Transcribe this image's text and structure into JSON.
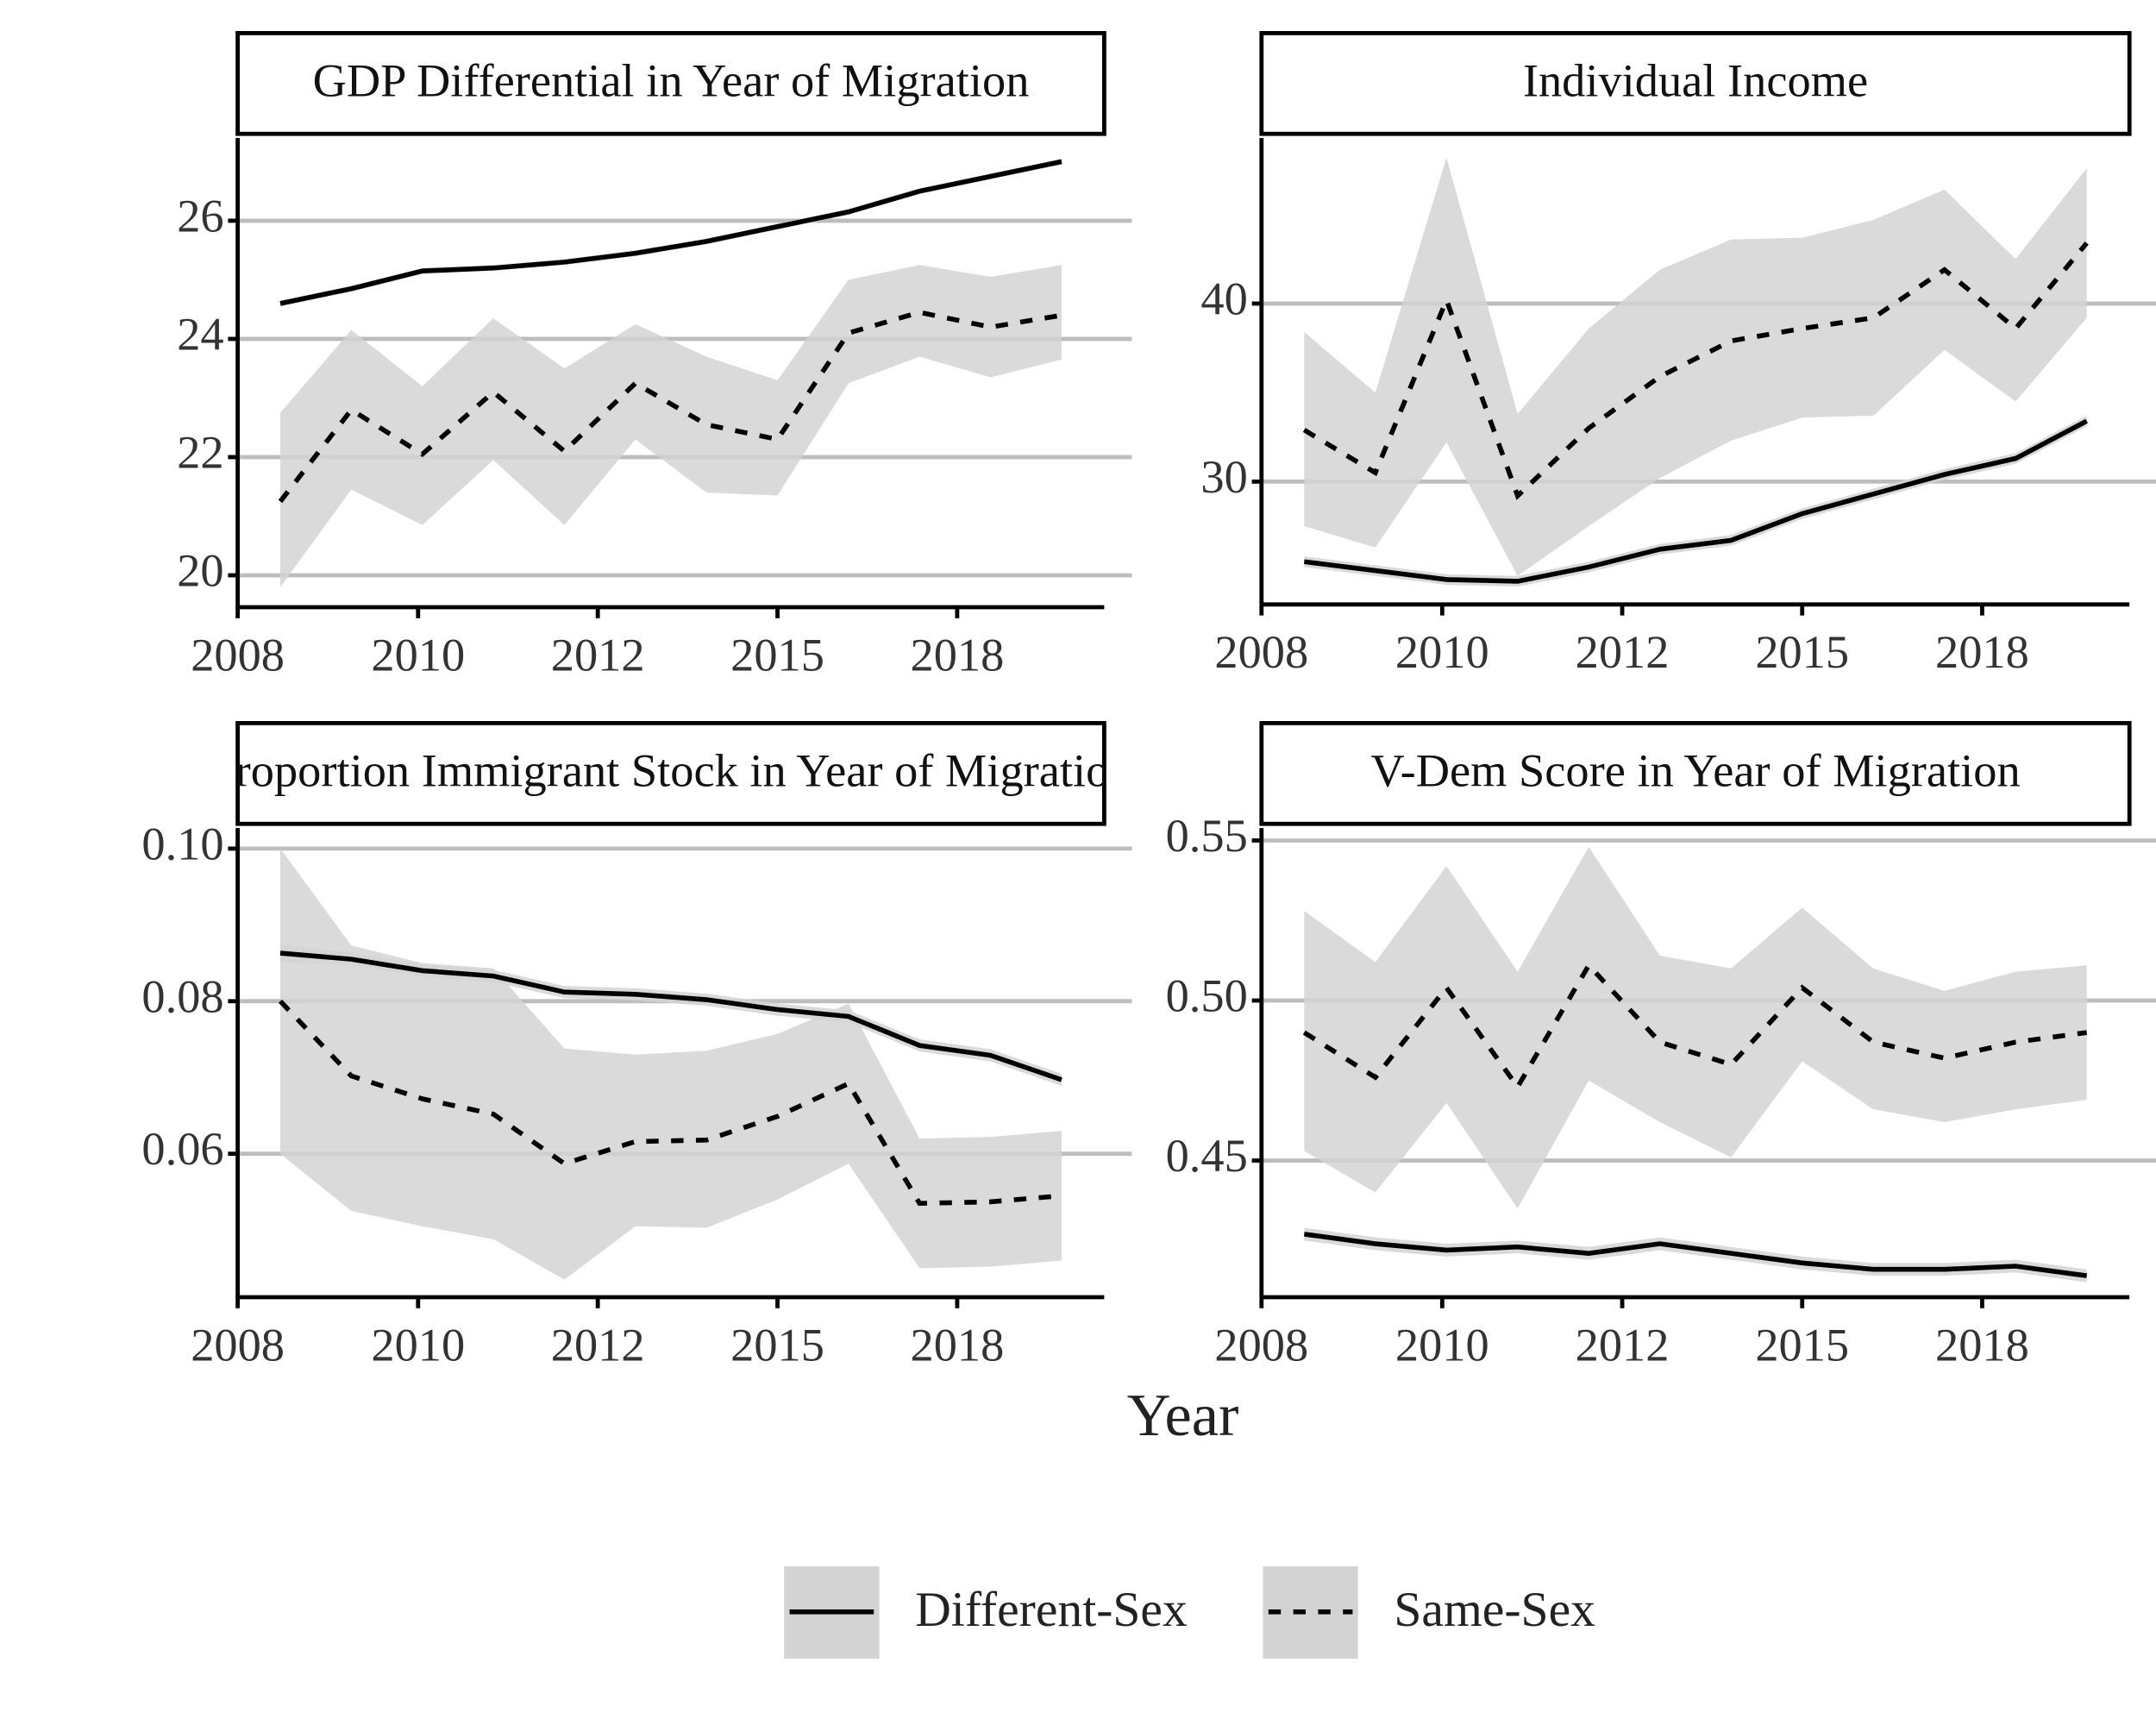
{
  "x_label": "Year",
  "chart_data": [
    {
      "type": "line",
      "title": "GDP Differential in Year of Migration",
      "x": [
        2008,
        2009,
        2010,
        2011,
        2012,
        2013,
        2014,
        2015,
        2016,
        2017,
        2018,
        2019
      ],
      "xlim": [
        2007.4,
        2019.6
      ],
      "xticks": [
        {
          "value": 2007.4,
          "label": "2008"
        },
        {
          "value": 2009.94,
          "label": "2010"
        },
        {
          "value": 2012.47,
          "label": "2012"
        },
        {
          "value": 2015.0,
          "label": "2015"
        },
        {
          "value": 2017.53,
          "label": "2018"
        }
      ],
      "ylim": [
        19.46,
        27.4
      ],
      "yticks": [
        20,
        22,
        24,
        26
      ],
      "grid": true,
      "band_color": "#d3d3d3",
      "series": [
        {
          "name": "Different-Sex",
          "color": "#000000",
          "style": "solid",
          "values": [
            24.6,
            24.85,
            25.15,
            25.2,
            25.3,
            25.45,
            25.65,
            25.9,
            26.15,
            26.5,
            26.75,
            27.0
          ],
          "lower": [
            24.55,
            24.8,
            25.1,
            25.15,
            25.25,
            25.4,
            25.6,
            25.85,
            26.1,
            26.45,
            26.7,
            26.95
          ],
          "upper": [
            24.65,
            24.9,
            25.2,
            25.25,
            25.35,
            25.5,
            25.7,
            25.95,
            26.2,
            26.55,
            26.8,
            27.05
          ]
        },
        {
          "name": "Same-Sex",
          "color": "#000000",
          "style": "dashed",
          "values": [
            21.25,
            22.8,
            22.05,
            23.1,
            22.1,
            23.25,
            22.55,
            22.3,
            24.1,
            24.45,
            24.2,
            24.4
          ],
          "lower": [
            19.8,
            21.45,
            20.85,
            21.95,
            20.85,
            22.3,
            21.4,
            21.35,
            23.25,
            23.7,
            23.35,
            23.65
          ],
          "upper": [
            22.75,
            24.15,
            23.2,
            24.35,
            23.5,
            24.25,
            23.7,
            23.3,
            25.0,
            25.25,
            25.05,
            25.25
          ]
        }
      ]
    },
    {
      "type": "line",
      "title": "Individual Income",
      "x": [
        2008,
        2009,
        2010,
        2011,
        2012,
        2013,
        2014,
        2015,
        2016,
        2017,
        2018,
        2019
      ],
      "xlim": [
        2007.4,
        2019.6
      ],
      "xticks": [
        {
          "value": 2007.4,
          "label": "2008"
        },
        {
          "value": 2009.94,
          "label": "2010"
        },
        {
          "value": 2012.47,
          "label": "2012"
        },
        {
          "value": 2015.0,
          "label": "2015"
        },
        {
          "value": 2017.53,
          "label": "2018"
        }
      ],
      "ylim": [
        23.1,
        49.3
      ],
      "yticks": [
        30,
        40
      ],
      "grid": true,
      "band_color": "#d3d3d3",
      "series": [
        {
          "name": "Different-Sex",
          "color": "#000000",
          "style": "solid",
          "values": [
            25.5,
            25.0,
            24.5,
            24.4,
            25.2,
            26.2,
            26.7,
            28.2,
            29.3,
            30.4,
            31.3,
            33.4
          ],
          "lower": [
            25.2,
            24.7,
            24.2,
            24.1,
            24.9,
            25.9,
            26.4,
            27.9,
            29.0,
            30.1,
            31.0,
            33.1
          ],
          "upper": [
            25.8,
            25.3,
            24.8,
            24.7,
            25.5,
            26.5,
            27.0,
            28.5,
            29.6,
            30.7,
            31.6,
            33.7
          ]
        },
        {
          "name": "Same-Sex",
          "color": "#000000",
          "style": "dashed",
          "values": [
            32.9,
            30.5,
            40.2,
            29.2,
            33.0,
            35.9,
            37.9,
            38.6,
            39.2,
            41.9,
            38.6,
            43.4
          ],
          "lower": [
            27.5,
            26.3,
            32.2,
            24.7,
            27.5,
            30.2,
            32.3,
            33.6,
            33.7,
            37.4,
            34.5,
            39.2
          ],
          "upper": [
            38.4,
            35.0,
            48.2,
            33.8,
            38.6,
            41.9,
            43.6,
            43.7,
            44.7,
            46.4,
            42.5,
            47.6
          ]
        }
      ]
    },
    {
      "type": "line",
      "title": "Proportion Immigrant Stock in Year of Migration",
      "x": [
        2008,
        2009,
        2010,
        2011,
        2012,
        2013,
        2014,
        2015,
        2016,
        2017,
        2018,
        2019
      ],
      "xlim": [
        2007.4,
        2019.6
      ],
      "xticks": [
        {
          "value": 2007.4,
          "label": "2008"
        },
        {
          "value": 2009.94,
          "label": "2010"
        },
        {
          "value": 2012.47,
          "label": "2012"
        },
        {
          "value": 2015.0,
          "label": "2015"
        },
        {
          "value": 2017.53,
          "label": "2018"
        }
      ],
      "ylim": [
        0.0412,
        0.1027
      ],
      "yticks": [
        {
          "value": 0.06,
          "label": "0.06"
        },
        {
          "value": 0.08,
          "label": "0.08"
        },
        {
          "value": 0.1,
          "label": "0.10"
        }
      ],
      "grid": true,
      "band_color": "#d3d3d3",
      "series": [
        {
          "name": "Different-Sex",
          "color": "#000000",
          "style": "solid",
          "values": [
            0.0863,
            0.0855,
            0.084,
            0.0833,
            0.0812,
            0.0809,
            0.0802,
            0.0789,
            0.078,
            0.0742,
            0.0729,
            0.0697
          ],
          "lower": [
            0.0851,
            0.0847,
            0.0832,
            0.0825,
            0.0804,
            0.0801,
            0.0794,
            0.0781,
            0.0772,
            0.0734,
            0.0721,
            0.0689
          ],
          "upper": [
            0.0875,
            0.0863,
            0.0848,
            0.0841,
            0.082,
            0.0817,
            0.081,
            0.0797,
            0.0788,
            0.075,
            0.0737,
            0.0705
          ]
        },
        {
          "name": "Same-Sex",
          "color": "#000000",
          "style": "dashed",
          "values": [
            0.08,
            0.0702,
            0.0672,
            0.0652,
            0.0587,
            0.0616,
            0.0618,
            0.0649,
            0.0692,
            0.0535,
            0.0537,
            0.0545
          ],
          "lower": [
            0.06,
            0.0525,
            0.0505,
            0.0488,
            0.0435,
            0.0505,
            0.0503,
            0.054,
            0.0587,
            0.045,
            0.0452,
            0.046
          ],
          "upper": [
            0.1,
            0.0873,
            0.085,
            0.0843,
            0.0738,
            0.073,
            0.0735,
            0.0757,
            0.0797,
            0.062,
            0.0622,
            0.063
          ]
        }
      ]
    },
    {
      "type": "line",
      "title": "V-Dem Score in Year of Migration",
      "x": [
        2008,
        2009,
        2010,
        2011,
        2012,
        2013,
        2014,
        2015,
        2016,
        2017,
        2018,
        2019
      ],
      "xlim": [
        2007.4,
        2019.6
      ],
      "xticks": [
        {
          "value": 2007.4,
          "label": "2008"
        },
        {
          "value": 2009.94,
          "label": "2010"
        },
        {
          "value": 2012.47,
          "label": "2012"
        },
        {
          "value": 2015.0,
          "label": "2015"
        },
        {
          "value": 2017.53,
          "label": "2018"
        }
      ],
      "ylim": [
        0.4073,
        0.5539
      ],
      "yticks": [
        {
          "value": 0.45,
          "label": "0.45"
        },
        {
          "value": 0.5,
          "label": "0.50"
        },
        {
          "value": 0.55,
          "label": "0.55"
        }
      ],
      "grid": true,
      "band_color": "#d3d3d3",
      "series": [
        {
          "name": "Different-Sex",
          "color": "#000000",
          "style": "solid",
          "values": [
            0.427,
            0.424,
            0.422,
            0.423,
            0.421,
            0.424,
            0.421,
            0.418,
            0.416,
            0.416,
            0.417,
            0.414
          ],
          "lower": [
            0.425,
            0.422,
            0.42,
            0.421,
            0.419,
            0.422,
            0.419,
            0.416,
            0.414,
            0.414,
            0.415,
            0.412
          ],
          "upper": [
            0.429,
            0.426,
            0.424,
            0.425,
            0.423,
            0.426,
            0.423,
            0.42,
            0.418,
            0.418,
            0.419,
            0.416
          ]
        },
        {
          "name": "Same-Sex",
          "color": "#000000",
          "style": "dashed",
          "values": [
            0.49,
            0.476,
            0.504,
            0.473,
            0.511,
            0.487,
            0.48,
            0.504,
            0.487,
            0.482,
            0.487,
            0.49
          ],
          "lower": [
            0.453,
            0.44,
            0.468,
            0.435,
            0.475,
            0.462,
            0.451,
            0.481,
            0.466,
            0.462,
            0.466,
            0.469
          ],
          "upper": [
            0.528,
            0.512,
            0.542,
            0.509,
            0.548,
            0.514,
            0.51,
            0.529,
            0.51,
            0.503,
            0.509,
            0.511
          ]
        }
      ]
    }
  ]
}
